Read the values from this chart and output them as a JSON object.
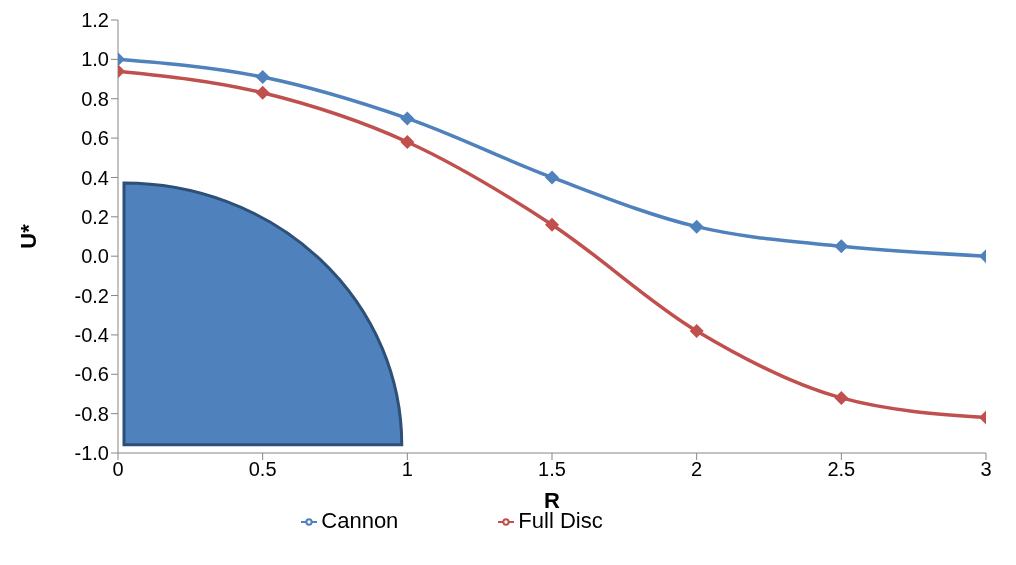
{
  "chart_data": {
    "type": "line",
    "xlabel": "R",
    "ylabel": "U*",
    "x": [
      0,
      0.5,
      1,
      1.5,
      2,
      2.5,
      3
    ],
    "series": [
      {
        "name": "Full Disc",
        "color": "#c0504d",
        "values": [
          0.94,
          0.83,
          0.58,
          0.16,
          -0.38,
          -0.72,
          -0.82
        ]
      },
      {
        "name": "Cannon",
        "color": "#4f81bd",
        "values": [
          1.0,
          0.91,
          0.7,
          0.4,
          0.15,
          0.05,
          0.0
        ]
      }
    ],
    "xlim": [
      0,
      3
    ],
    "xticks": [
      0,
      0.5,
      1,
      1.5,
      2,
      2.5,
      3
    ],
    "ylim": [
      -1,
      1.2
    ],
    "yticks": [
      {
        "value": -1,
        "label": "-1.0"
      },
      {
        "value": -0.8,
        "label": "-0.8"
      },
      {
        "value": -0.6,
        "label": "-0.6"
      },
      {
        "value": -0.4,
        "label": "-0.4"
      },
      {
        "value": -0.2,
        "label": "-0.2"
      },
      {
        "value": 0,
        "label": "0.0"
      },
      {
        "value": 0.2,
        "label": "0.2"
      },
      {
        "value": 0.4,
        "label": "0.4"
      },
      {
        "value": 0.6,
        "label": "0.6"
      },
      {
        "value": 0.8,
        "label": "0.8"
      },
      {
        "value": 1,
        "label": "1.0"
      },
      {
        "value": 1.2,
        "label": "1.2"
      }
    ],
    "grid": false,
    "legend": "bottom",
    "marker": "diamond",
    "line_style": "solid"
  }
}
